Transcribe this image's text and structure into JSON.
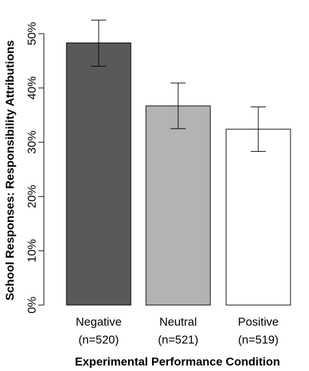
{
  "chart_data": {
    "type": "bar",
    "title": "",
    "xlabel": "Experimental Performance Condition",
    "ylabel": "School Responses: Responsibility Attributions",
    "ylim": [
      0,
      50
    ],
    "yticks": [
      0,
      10,
      20,
      30,
      40,
      50
    ],
    "ytick_labels": [
      "0%",
      "10%",
      "20%",
      "30%",
      "40%",
      "50%"
    ],
    "grid": false,
    "legend": "none",
    "categories": [
      "Negative",
      "Neutral",
      "Positive"
    ],
    "category_sublabels": [
      "(n=520)",
      "(n=521)",
      "(n=519)"
    ],
    "values": [
      48.3,
      36.7,
      32.4
    ],
    "error_low": [
      44.0,
      32.5,
      28.3
    ],
    "error_high": [
      52.5,
      40.9,
      36.5
    ],
    "colors": [
      "#595959",
      "#b3b3b3",
      "#ffffff"
    ]
  }
}
